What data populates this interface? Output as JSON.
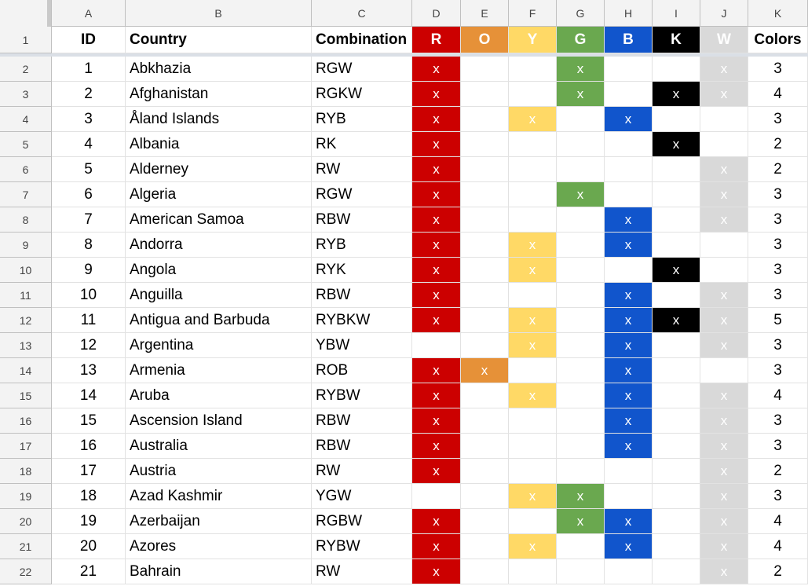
{
  "columns": [
    "A",
    "B",
    "C",
    "D",
    "E",
    "F",
    "G",
    "H",
    "I",
    "J",
    "K"
  ],
  "header": {
    "id": "ID",
    "country": "Country",
    "combination": "Combination",
    "color_letters": [
      "R",
      "O",
      "Y",
      "G",
      "B",
      "K",
      "W"
    ],
    "colors_count": "Colors"
  },
  "palette": {
    "R": "#cc0000",
    "O": "#e69138",
    "Y": "#ffd966",
    "G": "#6aa84f",
    "B": "#1155cc",
    "K": "#000000",
    "W": "#d9d9d9"
  },
  "mark_symbol": "x",
  "row_numbers": [
    "1",
    "2",
    "3",
    "4",
    "5",
    "6",
    "7",
    "8",
    "9",
    "10",
    "11",
    "12",
    "13",
    "14",
    "15",
    "16",
    "17",
    "18",
    "19",
    "20",
    "21",
    "22"
  ],
  "rows": [
    {
      "id": "1",
      "country": "Abkhazia",
      "combination": "RGW",
      "marks": [
        "x",
        "",
        "",
        "x",
        "",
        "",
        "x"
      ],
      "count": "3"
    },
    {
      "id": "2",
      "country": "Afghanistan",
      "combination": "RGKW",
      "marks": [
        "x",
        "",
        "",
        "x",
        "",
        "x",
        "x"
      ],
      "count": "4"
    },
    {
      "id": "3",
      "country": "Åland Islands",
      "combination": "RYB",
      "marks": [
        "x",
        "",
        "x",
        "",
        "x",
        "",
        ""
      ],
      "count": "3"
    },
    {
      "id": "4",
      "country": "Albania",
      "combination": "RK",
      "marks": [
        "x",
        "",
        "",
        "",
        "",
        "x",
        ""
      ],
      "count": "2"
    },
    {
      "id": "5",
      "country": "Alderney",
      "combination": "RW",
      "marks": [
        "x",
        "",
        "",
        "",
        "",
        "",
        "x"
      ],
      "count": "2"
    },
    {
      "id": "6",
      "country": "Algeria",
      "combination": "RGW",
      "marks": [
        "x",
        "",
        "",
        "x",
        "",
        "",
        "x"
      ],
      "count": "3"
    },
    {
      "id": "7",
      "country": "American Samoa",
      "combination": "RBW",
      "marks": [
        "x",
        "",
        "",
        "",
        "x",
        "",
        "x"
      ],
      "count": "3"
    },
    {
      "id": "8",
      "country": "Andorra",
      "combination": "RYB",
      "marks": [
        "x",
        "",
        "x",
        "",
        "x",
        "",
        ""
      ],
      "count": "3"
    },
    {
      "id": "9",
      "country": "Angola",
      "combination": "RYK",
      "marks": [
        "x",
        "",
        "x",
        "",
        "",
        "x",
        ""
      ],
      "count": "3"
    },
    {
      "id": "10",
      "country": "Anguilla",
      "combination": "RBW",
      "marks": [
        "x",
        "",
        "",
        "",
        "x",
        "",
        "x"
      ],
      "count": "3"
    },
    {
      "id": "11",
      "country": "Antigua and Barbuda",
      "combination": "RYBKW",
      "marks": [
        "x",
        "",
        "x",
        "",
        "x",
        "x",
        "x"
      ],
      "count": "5"
    },
    {
      "id": "12",
      "country": "Argentina",
      "combination": "YBW",
      "marks": [
        "",
        "",
        "x",
        "",
        "x",
        "",
        "x"
      ],
      "count": "3"
    },
    {
      "id": "13",
      "country": "Armenia",
      "combination": "ROB",
      "marks": [
        "x",
        "x",
        "",
        "",
        "x",
        "",
        ""
      ],
      "count": "3"
    },
    {
      "id": "14",
      "country": "Aruba",
      "combination": "RYBW",
      "marks": [
        "x",
        "",
        "x",
        "",
        "x",
        "",
        "x"
      ],
      "count": "4"
    },
    {
      "id": "15",
      "country": "Ascension Island",
      "combination": "RBW",
      "marks": [
        "x",
        "",
        "",
        "",
        "x",
        "",
        "x"
      ],
      "count": "3"
    },
    {
      "id": "16",
      "country": "Australia",
      "combination": "RBW",
      "marks": [
        "x",
        "",
        "",
        "",
        "x",
        "",
        "x"
      ],
      "count": "3"
    },
    {
      "id": "17",
      "country": "Austria",
      "combination": "RW",
      "marks": [
        "x",
        "",
        "",
        "",
        "",
        "",
        "x"
      ],
      "count": "2"
    },
    {
      "id": "18",
      "country": "Azad Kashmir",
      "combination": "YGW",
      "marks": [
        "",
        "",
        "x",
        "x",
        "",
        "",
        "x"
      ],
      "count": "3"
    },
    {
      "id": "19",
      "country": "Azerbaijan",
      "combination": "RGBW",
      "marks": [
        "x",
        "",
        "",
        "x",
        "x",
        "",
        "x"
      ],
      "count": "4"
    },
    {
      "id": "20",
      "country": "Azores",
      "combination": "RYBW",
      "marks": [
        "x",
        "",
        "x",
        "",
        "x",
        "",
        "x"
      ],
      "count": "4"
    },
    {
      "id": "21",
      "country": "Bahrain",
      "combination": "RW",
      "marks": [
        "x",
        "",
        "",
        "",
        "",
        "",
        "x"
      ],
      "count": "2"
    }
  ]
}
